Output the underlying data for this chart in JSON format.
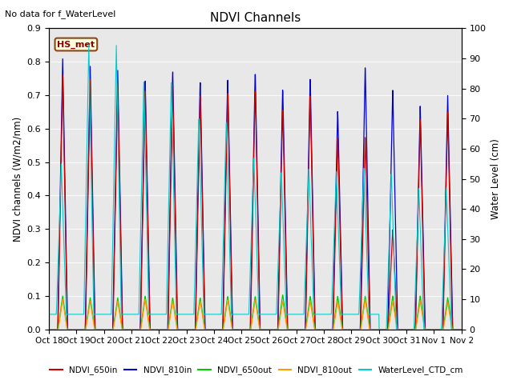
{
  "title": "NDVI Channels",
  "ylabel_left": "NDVI channels (W/m2/nm)",
  "ylabel_right": "Water Level (cm)",
  "annotation": "No data for f_WaterLevel",
  "station_label": "HS_met",
  "ylim_left": [
    0.0,
    0.9
  ],
  "ylim_right": [
    0,
    100
  ],
  "background_color": "#e8e8e8",
  "x_tick_labels": [
    "Oct 18",
    "Oct 19",
    "Oct 20",
    "Oct 21",
    "Oct 22",
    "Oct 23",
    "Oct 24",
    "Oct 25",
    "Oct 26",
    "Oct 27",
    "Oct 28",
    "Oct 29",
    "Oct 30",
    "Oct 31",
    "Nov 1",
    "Nov 2"
  ],
  "colors": {
    "NDVI_650in": "#cc0000",
    "NDVI_810in": "#0000cc",
    "NDVI_650out": "#00cc00",
    "NDVI_810out": "#ff9900",
    "WaterLevel_CTD_cm": "#00cccc"
  },
  "ndvi_810in_peaks": [
    0.81,
    0.79,
    0.78,
    0.75,
    0.78,
    0.75,
    0.76,
    0.78,
    0.73,
    0.76,
    0.66,
    0.79,
    0.72,
    0.67,
    0.7
  ],
  "ndvi_650in_peaks": [
    0.76,
    0.75,
    0.74,
    0.72,
    0.74,
    0.71,
    0.72,
    0.73,
    0.67,
    0.71,
    0.58,
    0.58,
    0.3,
    0.63,
    0.65
  ],
  "ndvi_650out_peaks": [
    0.1,
    0.095,
    0.095,
    0.1,
    0.095,
    0.095,
    0.1,
    0.1,
    0.105,
    0.1,
    0.1,
    0.1,
    0.1,
    0.1,
    0.095
  ],
  "ndvi_810out_peaks": [
    0.09,
    0.085,
    0.085,
    0.09,
    0.085,
    0.085,
    0.09,
    0.09,
    0.085,
    0.085,
    0.085,
    0.09,
    0.085,
    0.085,
    0.08
  ],
  "wl_day_peaks_cm": [
    55,
    95,
    95,
    83,
    83,
    71,
    70,
    58,
    53,
    54,
    53,
    54,
    52,
    47,
    47
  ],
  "wl_day_mins_cm": [
    5,
    5,
    5,
    5,
    5,
    5,
    5,
    5,
    5,
    5,
    5,
    5,
    0,
    0,
    0
  ],
  "n_days": 15,
  "figsize": [
    6.4,
    4.8
  ],
  "dpi": 100
}
